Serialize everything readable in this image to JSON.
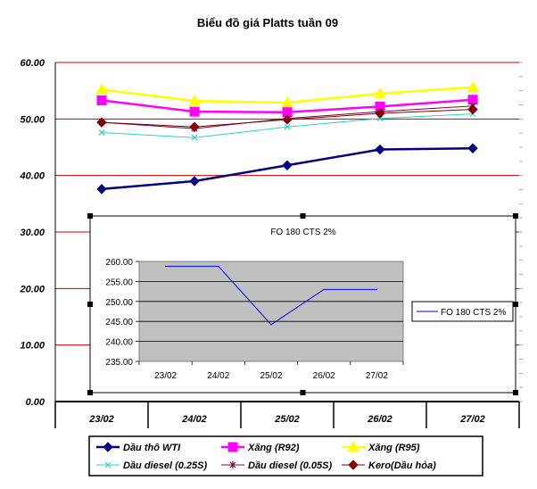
{
  "chart_data": [
    {
      "type": "line",
      "title": "Biểu đồ giá Platts tuần 09",
      "xlabel": "",
      "ylabel": "",
      "categories": [
        "23/02",
        "24/02",
        "25/02",
        "26/02",
        "27/02"
      ],
      "ylim": [
        0,
        60
      ],
      "yticks": [
        "0.00",
        "10.00",
        "20.00",
        "30.00",
        "40.00",
        "50.00",
        "60.00"
      ],
      "grid": true,
      "gridline_color": "#cc0000",
      "legend_position": "bottom",
      "series": [
        {
          "name": "Dầu thô WTI",
          "values": [
            37.6,
            39.0,
            41.8,
            44.6,
            44.8
          ],
          "color": "#000080",
          "marker": "diamond"
        },
        {
          "name": "Xăng (R92)",
          "values": [
            53.3,
            51.3,
            51.2,
            52.2,
            53.4
          ],
          "color": "#ff00ff",
          "marker": "square"
        },
        {
          "name": "Xăng (R95)",
          "values": [
            55.2,
            53.2,
            52.9,
            54.5,
            55.6
          ],
          "color": "#ffff00",
          "marker": "triangle"
        },
        {
          "name": "Dầu diesel (0.25S)",
          "values": [
            47.6,
            46.7,
            48.6,
            50.1,
            50.9
          ],
          "color": "#33cccc",
          "marker": "x"
        },
        {
          "name": "Dầu diesel (0.05S)",
          "values": [
            49.4,
            48.3,
            50.1,
            51.3,
            52.3
          ],
          "color": "#800040",
          "marker": "asterisk"
        },
        {
          "name": "Kero(Dầu hỏa)",
          "values": [
            49.4,
            48.6,
            49.9,
            51.0,
            51.7
          ],
          "color": "#800000",
          "marker": "diamond"
        }
      ]
    },
    {
      "type": "line",
      "title": "FO 180 CTS 2%",
      "xlabel": "",
      "ylabel": "",
      "categories": [
        "23/02",
        "24/02",
        "25/02",
        "26/02",
        "27/02"
      ],
      "ylim": [
        235,
        260
      ],
      "yticks": [
        "235.00",
        "240.00",
        "245.00",
        "250.00",
        "255.00",
        "260.00"
      ],
      "plot_background": "#c0c0c0",
      "grid": true,
      "legend_position": "right",
      "series": [
        {
          "name": "FO 180 CTS 2%",
          "values": [
            258.8,
            258.8,
            244.2,
            253.0,
            253.0
          ],
          "color": "#0000ff"
        }
      ]
    }
  ]
}
